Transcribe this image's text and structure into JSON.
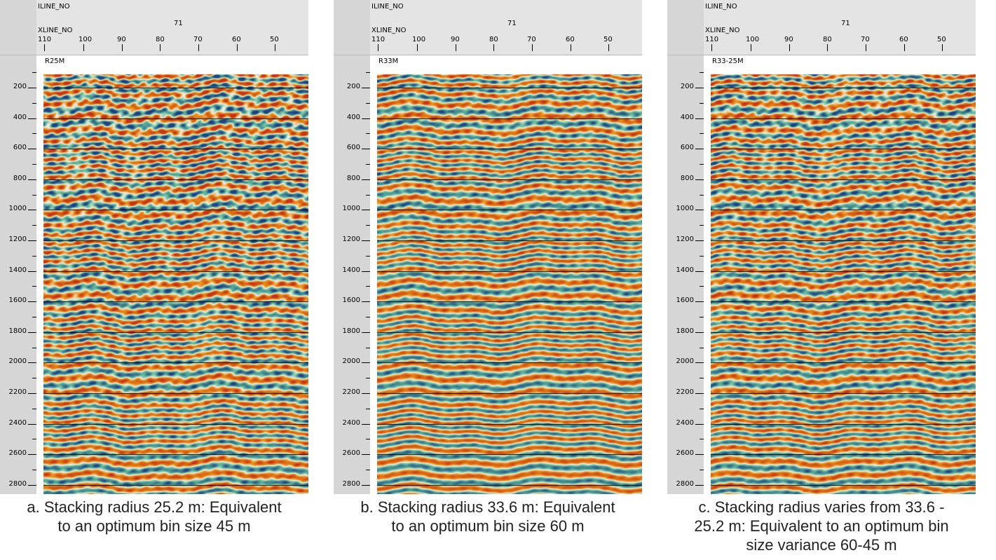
{
  "panels": [
    {
      "id": "a",
      "iline_label": "ILINE_NO",
      "iline_value": "71",
      "xline_label": "XLINE_NO",
      "xline_ticks": [
        "110",
        "100",
        "90",
        "80",
        "70",
        "60",
        "50"
      ],
      "tag": "R25M",
      "y_ticks": [
        "200",
        "400",
        "600",
        "800",
        "1000",
        "1200",
        "1400",
        "1600",
        "1800",
        "2000",
        "2200",
        "2400",
        "2600",
        "2800"
      ],
      "caption_line1": "a. Stacking radius 25.2 m: Equivalent",
      "caption_line2": "to an optimum bin size 45 m",
      "caption_line3": ""
    },
    {
      "id": "b",
      "iline_label": "ILINE_NO",
      "iline_value": "71",
      "xline_label": "XLINE_NO",
      "xline_ticks": [
        "110",
        "100",
        "90",
        "80",
        "70",
        "60",
        "50"
      ],
      "tag": "R33M",
      "y_ticks": [
        "200",
        "400",
        "600",
        "800",
        "1000",
        "1200",
        "1400",
        "1600",
        "1800",
        "2000",
        "2200",
        "2400",
        "2600",
        "2800"
      ],
      "caption_line1": "b. Stacking radius 33.6 m: Equivalent",
      "caption_line2": "to an optimum bin size 60 m",
      "caption_line3": ""
    },
    {
      "id": "c",
      "iline_label": "ILINE_NO",
      "iline_value": "71",
      "xline_label": "XLINE_NO",
      "xline_ticks": [
        "110",
        "100",
        "90",
        "80",
        "70",
        "60",
        "50"
      ],
      "tag": "R33-25M",
      "y_ticks": [
        "200",
        "400",
        "600",
        "800",
        "1000",
        "1200",
        "1400",
        "1600",
        "1800",
        "2000",
        "2200",
        "2400",
        "2600",
        "2800"
      ],
      "caption_line1": "c. Stacking radius varies from 33.6 -",
      "caption_line2": "25.2 m: Equivalent to an optimum bin",
      "caption_line3": "size variance 60-45 m"
    }
  ],
  "colors": {
    "positive": "#e88a12",
    "strong_positive": "#c5321c",
    "negative": "#5fb89a",
    "strong_negative": "#1f3f86",
    "neutral": "#f4f1e6",
    "gridline": "#000000"
  }
}
